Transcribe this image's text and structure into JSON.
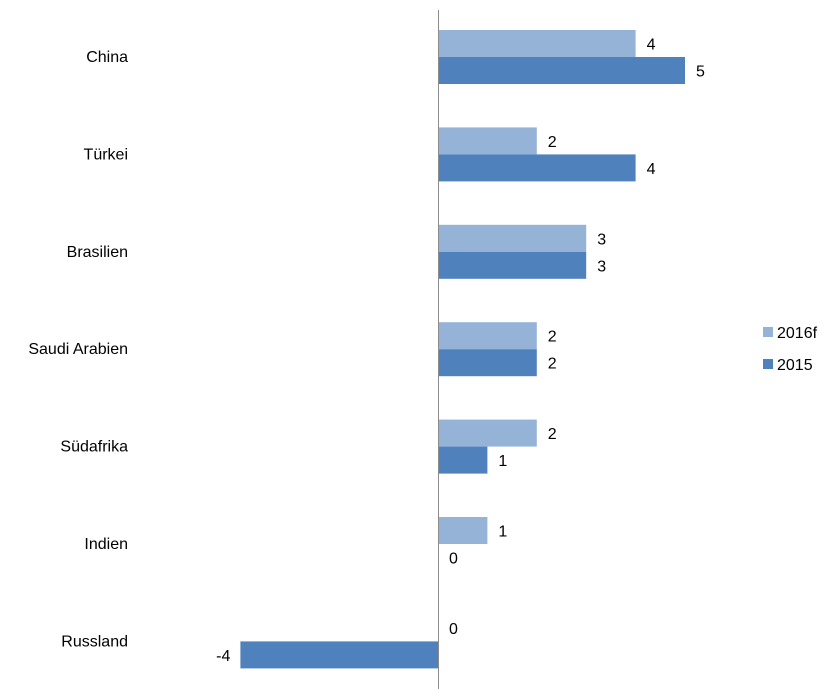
{
  "chart_data": {
    "type": "bar",
    "orientation": "horizontal",
    "categories": [
      "China",
      "Türkei",
      "Brasilien",
      "Saudi Arabien",
      "Südafrika",
      "Indien",
      "Russland"
    ],
    "series": [
      {
        "name": "2016f",
        "color": "#95b3d7",
        "values": [
          4,
          2,
          3,
          2,
          2,
          1,
          0
        ],
        "labels": [
          "4",
          "2",
          "3",
          "2",
          "2",
          "1",
          "0"
        ]
      },
      {
        "name": "2015",
        "color": "#4f81bd",
        "values": [
          5,
          4,
          3,
          2,
          1,
          0,
          -4
        ],
        "labels": [
          "5",
          "4",
          "3",
          "2",
          "1",
          "0",
          "-4"
        ]
      }
    ],
    "xlim": [
      -4,
      5
    ],
    "grid": false,
    "legend_position": "right"
  }
}
